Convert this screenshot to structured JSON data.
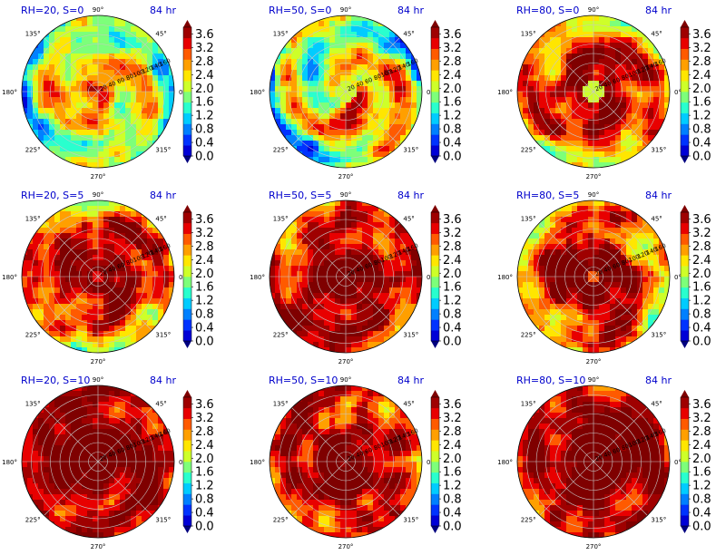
{
  "figure": {
    "colorbar_ticks": [
      "0.0",
      "0.4",
      "0.8",
      "1.2",
      "1.6",
      "2.0",
      "2.4",
      "2.8",
      "3.2",
      "3.6"
    ],
    "colorbar_colors": [
      "#00007f",
      "#0000d6",
      "#0033ff",
      "#0080ff",
      "#00ccff",
      "#29ffce",
      "#7dff7a",
      "#ceff29",
      "#ffe600",
      "#ff9f00",
      "#ff5a00",
      "#e80000",
      "#9f0000",
      "#7f0000"
    ],
    "polar_tick_labels": [
      "90°",
      "45°",
      "0°",
      "315°",
      "270°",
      "225°",
      "180°",
      "135°"
    ],
    "radial_tick_labels": [
      "20",
      "40",
      "60",
      "80",
      "100",
      "120",
      "140",
      "160"
    ]
  },
  "chart_data": [
    {
      "type": "heatmap",
      "projection": "polar",
      "title_left": "RH=20, S=0",
      "title_right": "84 hr",
      "clim": [
        0.0,
        3.8
      ],
      "radial_max": 160,
      "rings": [
        20,
        40,
        60,
        80,
        100,
        120,
        140,
        160
      ],
      "spokes_deg": [
        0,
        45,
        90,
        135,
        180,
        225,
        270,
        315
      ],
      "pattern": "spiral band, weak outer region"
    },
    {
      "type": "heatmap",
      "projection": "polar",
      "title_left": "RH=50, S=0",
      "title_right": "84 hr",
      "clim": [
        0.0,
        3.8
      ],
      "radial_max": 160,
      "rings": [
        20,
        40,
        60,
        80,
        100,
        120,
        140,
        160
      ],
      "spokes_deg": [
        0,
        45,
        90,
        135,
        180,
        225,
        270,
        315
      ],
      "pattern": "spiral bands, weak outer region"
    },
    {
      "type": "heatmap",
      "projection": "polar",
      "title_left": "RH=80, S=0",
      "title_right": "84 hr",
      "clim": [
        0.0,
        3.8
      ],
      "radial_max": 160,
      "rings": [
        20,
        40,
        60,
        80,
        100,
        120,
        140,
        160
      ],
      "spokes_deg": [
        0,
        45,
        90,
        135,
        180,
        225,
        270,
        315
      ],
      "pattern": "strong ring with weak eye"
    },
    {
      "type": "heatmap",
      "projection": "polar",
      "title_left": "RH=20, S=5",
      "title_right": "84 hr",
      "clim": [
        0.0,
        3.8
      ],
      "radial_max": 160,
      "rings": [
        20,
        40,
        60,
        80,
        100,
        120,
        140,
        160
      ],
      "spokes_deg": [
        0,
        45,
        90,
        135,
        180,
        225,
        270,
        315
      ],
      "pattern": "broad strong core, mixed outer region"
    },
    {
      "type": "heatmap",
      "projection": "polar",
      "title_left": "RH=50, S=5",
      "title_right": "84 hr",
      "clim": [
        0.0,
        3.8
      ],
      "radial_max": 160,
      "rings": [
        20,
        40,
        60,
        80,
        100,
        120,
        140,
        160
      ],
      "spokes_deg": [
        0,
        45,
        90,
        135,
        180,
        225,
        270,
        315
      ],
      "pattern": "strong nearly everywhere"
    },
    {
      "type": "heatmap",
      "projection": "polar",
      "title_left": "RH=80, S=5",
      "title_right": "84 hr",
      "clim": [
        0.0,
        3.8
      ],
      "radial_max": 160,
      "rings": [
        20,
        40,
        60,
        80,
        100,
        120,
        140,
        160
      ],
      "spokes_deg": [
        0,
        45,
        90,
        135,
        180,
        225,
        270,
        315
      ],
      "pattern": "strong core, patchy outer region"
    },
    {
      "type": "heatmap",
      "projection": "polar",
      "title_left": "RH=20, S=10",
      "title_right": "84 hr",
      "clim": [
        0.0,
        3.8
      ],
      "radial_max": 160,
      "rings": [
        20,
        40,
        60,
        80,
        100,
        120,
        140,
        160
      ],
      "spokes_deg": [
        0,
        45,
        90,
        135,
        180,
        225,
        270,
        315
      ],
      "pattern": "strong nearly everywhere"
    },
    {
      "type": "heatmap",
      "projection": "polar",
      "title_left": "RH=50, S=10",
      "title_right": "84 hr",
      "clim": [
        0.0,
        3.8
      ],
      "radial_max": 160,
      "rings": [
        20,
        40,
        60,
        80,
        100,
        120,
        140,
        160
      ],
      "spokes_deg": [
        0,
        45,
        90,
        135,
        180,
        225,
        270,
        315
      ],
      "pattern": "strong core, weak upper-left"
    },
    {
      "type": "heatmap",
      "projection": "polar",
      "title_left": "RH=80, S=10",
      "title_right": "84 hr",
      "clim": [
        0.0,
        3.8
      ],
      "radial_max": 160,
      "rings": [
        20,
        40,
        60,
        80,
        100,
        120,
        140,
        160
      ],
      "spokes_deg": [
        0,
        45,
        90,
        135,
        180,
        225,
        270,
        315
      ],
      "pattern": "strong nearly everywhere"
    }
  ]
}
